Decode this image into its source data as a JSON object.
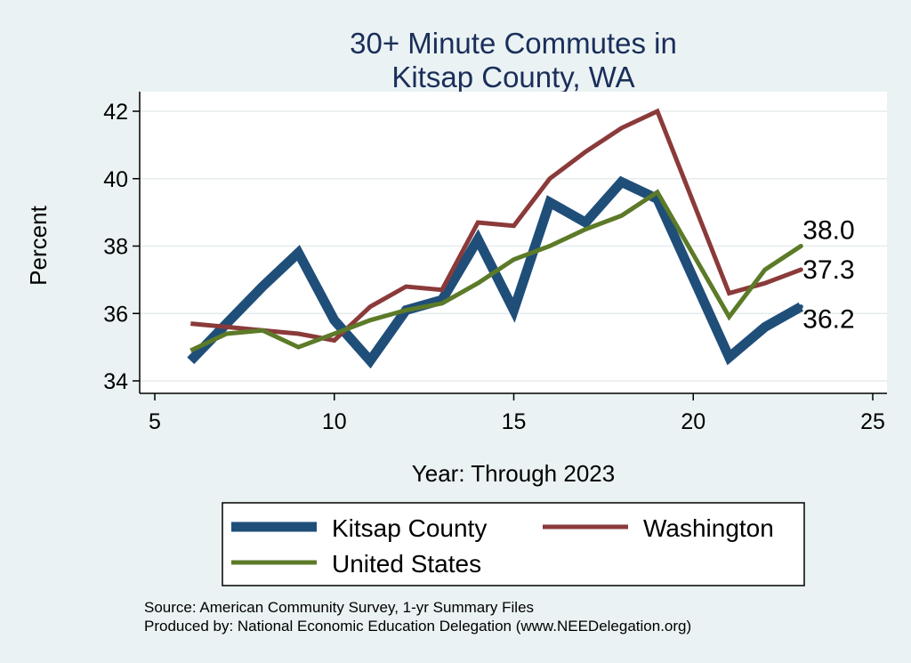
{
  "chart_data": {
    "type": "line",
    "title_lines": [
      "30+ Minute Commutes in",
      "Kitsap County, WA"
    ],
    "xlabel": "Year: Through 2023",
    "ylabel": "Percent",
    "xlim": [
      5,
      25
    ],
    "ylim": [
      34,
      42
    ],
    "x_ticks": [
      "5",
      "10",
      "15",
      "20",
      "25"
    ],
    "y_ticks": [
      "34",
      "36",
      "38",
      "40",
      "42"
    ],
    "x": [
      6,
      7,
      8,
      9,
      10,
      11,
      12,
      13,
      14,
      15,
      16,
      17,
      18,
      19,
      21,
      22,
      23
    ],
    "series": [
      {
        "name": "Kitsap County",
        "color": "#1f4e79",
        "values": [
          34.6,
          35.7,
          36.8,
          37.8,
          35.8,
          34.6,
          36.1,
          36.4,
          38.2,
          36.1,
          39.3,
          38.7,
          39.9,
          39.4,
          34.7,
          35.6,
          36.2
        ],
        "end_label": "36.2"
      },
      {
        "name": "Washington",
        "color": "#8b3a3a",
        "values": [
          35.7,
          35.6,
          35.5,
          35.4,
          35.2,
          36.2,
          36.8,
          36.7,
          38.7,
          38.6,
          40.0,
          40.8,
          41.5,
          42.0,
          36.6,
          36.9,
          37.3
        ],
        "end_label": "37.3"
      },
      {
        "name": "United States",
        "color": "#5c7a28",
        "values": [
          34.9,
          35.4,
          35.5,
          35.0,
          35.4,
          35.8,
          36.1,
          36.3,
          36.9,
          37.6,
          38.0,
          38.5,
          38.9,
          39.6,
          35.9,
          37.3,
          38.0
        ],
        "end_label": "38.0"
      }
    ],
    "grid": true,
    "legend": "bottom"
  },
  "source_lines": [
    "Source: American Community Survey, 1-yr Summary Files",
    "Produced by: National Economic Education Delegation (www.NEEDelegation.org)"
  ]
}
